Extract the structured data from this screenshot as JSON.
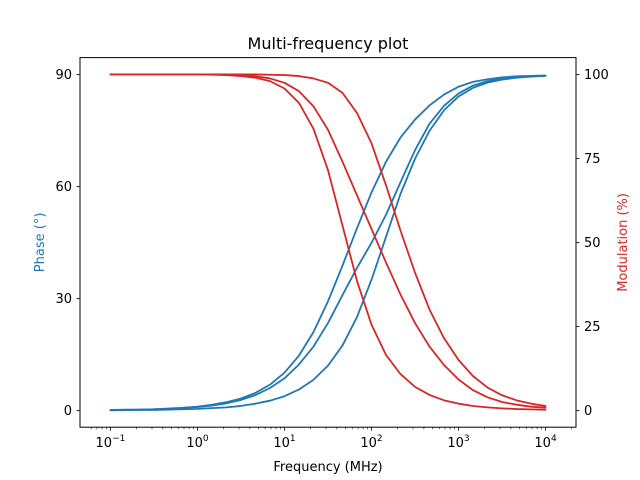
{
  "chart_data": {
    "type": "line",
    "title": "Multi-frequency plot",
    "xlabel": "Frequency (MHz)",
    "ylabel_left": "Phase (°)",
    "ylabel_right": "Modulation (%)",
    "x_scale": "log",
    "xlim": [
      0.1,
      10000
    ],
    "ylim_left": [
      -4.5,
      94.5
    ],
    "ylim_right": [
      -5,
      105
    ],
    "x_ticks": [
      {
        "value": 0.1,
        "base": "10",
        "exp": "−1"
      },
      {
        "value": 1,
        "base": "10",
        "exp": "0"
      },
      {
        "value": 10,
        "base": "10",
        "exp": "1"
      },
      {
        "value": 100,
        "base": "10",
        "exp": "2"
      },
      {
        "value": 1000,
        "base": "10",
        "exp": "3"
      },
      {
        "value": 10000,
        "base": "10",
        "exp": "4"
      }
    ],
    "y_ticks_left": [
      "0",
      "30",
      "60",
      "90"
    ],
    "y_ticks_right": [
      "0",
      "25",
      "50",
      "75",
      "100"
    ],
    "grid": false,
    "colors": {
      "phase": "#1f77b4",
      "modulation": "#d62728"
    },
    "x": [
      0.1,
      0.1468,
      0.2154,
      0.3162,
      0.4642,
      0.6813,
      1,
      1.468,
      2.154,
      3.162,
      4.642,
      6.813,
      10,
      14.68,
      21.54,
      31.62,
      46.42,
      68.13,
      100,
      146.8,
      215.4,
      316.2,
      464.2,
      681.3,
      1000,
      1468,
      2154,
      3162,
      4642,
      6813,
      10000
    ],
    "series": [
      {
        "axis": "left",
        "values": [
          0.1,
          0.2,
          0.2,
          0.3,
          0.5,
          0.7,
          1.0,
          1.5,
          2.2,
          3.2,
          4.7,
          6.9,
          10.1,
          14.7,
          21.0,
          29.2,
          38.8,
          48.8,
          58.4,
          66.6,
          73.1,
          77.9,
          81.7,
          84.6,
          86.7,
          88.0,
          88.7,
          89.2,
          89.5,
          89.6,
          89.7
        ]
      },
      {
        "axis": "left",
        "values": [
          0.1,
          0.1,
          0.2,
          0.3,
          0.4,
          0.6,
          0.9,
          1.3,
          1.9,
          2.8,
          4.1,
          6.0,
          8.6,
          12.3,
          17.1,
          23.4,
          30.9,
          38.2,
          44.9,
          52.4,
          61.1,
          69.7,
          76.8,
          81.6,
          84.9,
          87.0,
          88.2,
          88.9,
          89.3,
          89.5,
          89.6
        ]
      },
      {
        "axis": "left",
        "values": [
          0.0,
          0.1,
          0.1,
          0.1,
          0.2,
          0.3,
          0.4,
          0.6,
          0.8,
          1.2,
          1.8,
          2.6,
          3.8,
          5.6,
          8.2,
          12.0,
          17.4,
          25.0,
          35.0,
          46.5,
          58.0,
          67.4,
          74.9,
          80.4,
          84.1,
          86.4,
          87.8,
          88.6,
          89.1,
          89.4,
          89.6
        ]
      },
      {
        "axis": "right",
        "values": [
          100,
          100,
          100,
          100,
          100,
          100,
          100,
          99.9,
          99.8,
          99.5,
          99,
          98,
          95.8,
          91.5,
          83.8,
          71.5,
          55,
          38.5,
          25.5,
          16.5,
          10.8,
          7,
          4.6,
          3,
          2,
          1.3,
          0.9,
          0.6,
          0.4,
          0.3,
          0.2
        ]
      },
      {
        "axis": "right",
        "values": [
          100,
          100,
          100,
          100,
          100,
          100,
          100,
          100,
          99.9,
          99.8,
          99.5,
          98.8,
          97.5,
          95,
          90.5,
          83.5,
          74,
          64,
          54,
          44,
          34.5,
          26,
          19,
          13.5,
          9.2,
          6,
          3.9,
          2.5,
          1.7,
          1.1,
          0.8
        ]
      },
      {
        "axis": "right",
        "values": [
          100,
          100,
          100,
          100,
          100,
          100,
          100,
          100,
          100,
          100,
          100,
          99.9,
          99.8,
          99.5,
          98.8,
          97.5,
          94.5,
          88.5,
          79.5,
          67,
          53.5,
          41,
          30,
          21.5,
          15,
          10.2,
          6.8,
          4.5,
          3,
          2,
          1.3
        ]
      }
    ]
  }
}
